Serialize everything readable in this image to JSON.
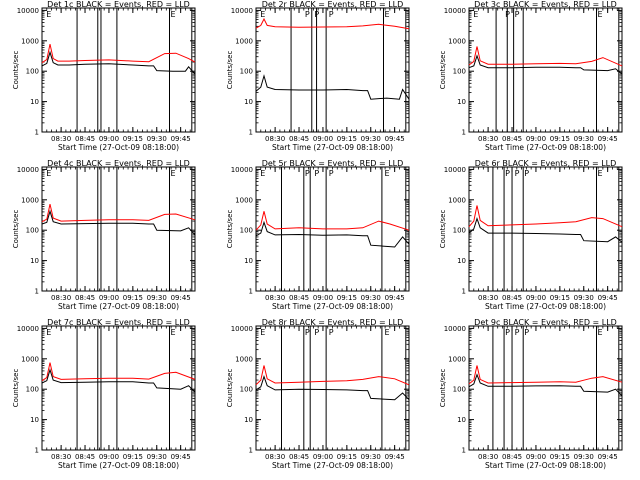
{
  "colors": {
    "events": "#000000",
    "lld": "#ff0000",
    "axis": "#000000"
  },
  "common": {
    "ylabel": "Counts/sec",
    "xlabel": "Start Time (27-Oct-09 08:18:00)",
    "ytick_labels": [
      "1",
      "10",
      "100",
      "1000",
      "10000"
    ],
    "xtick_labels": [
      "08:30",
      "08:45",
      "09:00",
      "09:15",
      "09:30",
      "09:45"
    ]
  },
  "chart_data": [
    {
      "type": "line",
      "title": "Det 1c BLACK = Events, RED = LLD",
      "y_scale": "log",
      "ylim": [
        1,
        12000
      ],
      "xlim": [
        "08:18",
        "09:54"
      ],
      "marker_letters": [
        "E",
        "E"
      ],
      "series": [
        {
          "color": "#ff0000",
          "x": [
            "08:18",
            "08:21",
            "08:23",
            "08:25",
            "08:28",
            "08:35",
            "08:45",
            "09:00",
            "09:15",
            "09:25",
            "09:35",
            "09:42",
            "09:50",
            "09:54"
          ],
          "values": [
            190,
            240,
            780,
            260,
            215,
            215,
            225,
            235,
            215,
            205,
            380,
            390,
            260,
            200
          ]
        },
        {
          "color": "#000000",
          "x": [
            "08:18",
            "08:21",
            "08:23",
            "08:25",
            "08:28",
            "08:35",
            "08:45",
            "09:00",
            "09:15",
            "09:25",
            "09:28",
            "09:30",
            "09:40",
            "09:48",
            "09:50",
            "09:54"
          ],
          "values": [
            150,
            180,
            420,
            190,
            160,
            160,
            170,
            175,
            160,
            150,
            150,
            105,
            100,
            100,
            140,
            80
          ]
        }
      ]
    },
    {
      "type": "line",
      "title": "Det 2r BLACK = Events, RED = LLD",
      "y_scale": "log",
      "ylim": [
        1,
        12000
      ],
      "xlim": [
        "08:18",
        "09:54"
      ],
      "marker_letters": [
        "E",
        "P",
        "P",
        "P",
        "E"
      ],
      "series": [
        {
          "color": "#ff0000",
          "x": [
            "08:18",
            "08:21",
            "08:23",
            "08:25",
            "08:30",
            "08:45",
            "09:00",
            "09:15",
            "09:25",
            "09:35",
            "09:45",
            "09:54"
          ],
          "values": [
            2600,
            3200,
            5200,
            3200,
            2900,
            2800,
            2850,
            2900,
            3100,
            3500,
            3000,
            2500
          ]
        },
        {
          "color": "#000000",
          "x": [
            "08:18",
            "08:21",
            "08:23",
            "08:25",
            "08:30",
            "08:45",
            "09:00",
            "09:15",
            "09:25",
            "09:28",
            "09:30",
            "09:40",
            "09:48",
            "09:50",
            "09:54"
          ],
          "values": [
            22,
            30,
            70,
            30,
            25,
            24,
            24,
            25,
            23,
            23,
            12,
            13,
            12,
            25,
            12
          ]
        }
      ]
    },
    {
      "type": "line",
      "title": "Det 3c BLACK = Events, RED = LLD",
      "y_scale": "log",
      "ylim": [
        1,
        12000
      ],
      "xlim": [
        "08:18",
        "09:54"
      ],
      "marker_letters": [
        "E",
        "P",
        "P",
        "E"
      ],
      "series": [
        {
          "color": "#ff0000",
          "x": [
            "08:18",
            "08:21",
            "08:23",
            "08:25",
            "08:30",
            "08:45",
            "09:00",
            "09:15",
            "09:25",
            "09:35",
            "09:42",
            "09:54"
          ],
          "values": [
            160,
            210,
            650,
            220,
            170,
            170,
            175,
            180,
            175,
            210,
            280,
            150
          ]
        },
        {
          "color": "#000000",
          "x": [
            "08:18",
            "08:21",
            "08:23",
            "08:25",
            "08:30",
            "08:45",
            "09:00",
            "09:15",
            "09:25",
            "09:28",
            "09:30",
            "09:45",
            "09:50",
            "09:54"
          ],
          "values": [
            130,
            150,
            320,
            160,
            130,
            130,
            135,
            135,
            130,
            130,
            110,
            105,
            120,
            80
          ]
        }
      ]
    },
    {
      "type": "line",
      "title": "Det 4c BLACK = Events, RED = LLD",
      "y_scale": "log",
      "ylim": [
        1,
        12000
      ],
      "xlim": [
        "08:18",
        "09:54"
      ],
      "marker_letters": [
        "E",
        "E"
      ],
      "series": [
        {
          "color": "#ff0000",
          "x": [
            "08:18",
            "08:21",
            "08:23",
            "08:25",
            "08:30",
            "08:45",
            "09:00",
            "09:15",
            "09:25",
            "09:35",
            "09:42",
            "09:54"
          ],
          "values": [
            190,
            230,
            720,
            250,
            200,
            210,
            220,
            220,
            210,
            330,
            340,
            220
          ]
        },
        {
          "color": "#000000",
          "x": [
            "08:18",
            "08:21",
            "08:23",
            "08:25",
            "08:30",
            "08:45",
            "09:00",
            "09:15",
            "09:25",
            "09:28",
            "09:30",
            "09:45",
            "09:50",
            "09:54"
          ],
          "values": [
            160,
            180,
            420,
            190,
            160,
            165,
            170,
            170,
            160,
            160,
            100,
            95,
            120,
            70
          ]
        }
      ]
    },
    {
      "type": "line",
      "title": "Det 5r BLACK = Events, RED = LLD",
      "y_scale": "log",
      "ylim": [
        1,
        12000
      ],
      "xlim": [
        "08:18",
        "09:54"
      ],
      "marker_letters": [
        "E",
        "P",
        "P",
        "P",
        "E"
      ],
      "series": [
        {
          "color": "#ff0000",
          "x": [
            "08:18",
            "08:21",
            "08:23",
            "08:25",
            "08:30",
            "08:45",
            "09:00",
            "09:15",
            "09:25",
            "09:35",
            "09:42",
            "09:54"
          ],
          "values": [
            100,
            150,
            420,
            160,
            110,
            120,
            110,
            110,
            120,
            200,
            160,
            100
          ]
        },
        {
          "color": "#000000",
          "x": [
            "08:18",
            "08:21",
            "08:23",
            "08:25",
            "08:30",
            "08:45",
            "09:00",
            "09:15",
            "09:25",
            "09:28",
            "09:30",
            "09:45",
            "09:50",
            "09:54"
          ],
          "values": [
            65,
            80,
            180,
            90,
            70,
            72,
            68,
            70,
            66,
            66,
            32,
            28,
            60,
            35
          ]
        }
      ]
    },
    {
      "type": "line",
      "title": "Det 6r BLACK = Events, RED = LLD",
      "y_scale": "log",
      "ylim": [
        1,
        12000
      ],
      "xlim": [
        "08:18",
        "09:54"
      ],
      "marker_letters": [
        "P",
        "P",
        "P",
        "E"
      ],
      "series": [
        {
          "color": "#ff0000",
          "x": [
            "08:18",
            "08:21",
            "08:23",
            "08:25",
            "08:30",
            "08:45",
            "09:00",
            "09:15",
            "09:25",
            "09:35",
            "09:42",
            "09:54"
          ],
          "values": [
            130,
            200,
            650,
            210,
            140,
            150,
            160,
            175,
            190,
            260,
            240,
            130
          ]
        },
        {
          "color": "#000000",
          "x": [
            "08:18",
            "08:21",
            "08:23",
            "08:25",
            "08:30",
            "08:45",
            "09:00",
            "09:15",
            "09:25",
            "09:28",
            "09:30",
            "09:45",
            "09:50",
            "09:54"
          ],
          "values": [
            80,
            110,
            240,
            120,
            80,
            80,
            78,
            75,
            72,
            72,
            45,
            42,
            60,
            40
          ]
        }
      ]
    },
    {
      "type": "line",
      "title": "Det 7c BLACK = Events, RED = LLD",
      "y_scale": "log",
      "ylim": [
        1,
        12000
      ],
      "xlim": [
        "08:18",
        "09:54"
      ],
      "marker_letters": [
        "E",
        "E"
      ],
      "series": [
        {
          "color": "#ff0000",
          "x": [
            "08:18",
            "08:21",
            "08:23",
            "08:25",
            "08:30",
            "08:45",
            "09:00",
            "09:15",
            "09:25",
            "09:35",
            "09:42",
            "09:54"
          ],
          "values": [
            190,
            240,
            750,
            260,
            210,
            220,
            230,
            230,
            215,
            330,
            360,
            210
          ]
        },
        {
          "color": "#000000",
          "x": [
            "08:18",
            "08:21",
            "08:23",
            "08:25",
            "08:30",
            "08:45",
            "09:00",
            "09:15",
            "09:25",
            "09:28",
            "09:30",
            "09:45",
            "09:50",
            "09:54"
          ],
          "values": [
            160,
            190,
            430,
            200,
            165,
            170,
            175,
            175,
            160,
            160,
            110,
            100,
            130,
            80
          ]
        }
      ]
    },
    {
      "type": "line",
      "title": "Det 8r BLACK = Events, RED = LLD",
      "y_scale": "log",
      "ylim": [
        1,
        12000
      ],
      "xlim": [
        "08:18",
        "09:54"
      ],
      "marker_letters": [
        "E",
        "P",
        "P",
        "P",
        "E"
      ],
      "series": [
        {
          "color": "#ff0000",
          "x": [
            "08:18",
            "08:21",
            "08:23",
            "08:25",
            "08:30",
            "08:45",
            "09:00",
            "09:15",
            "09:25",
            "09:35",
            "09:45",
            "09:54"
          ],
          "values": [
            140,
            200,
            600,
            220,
            160,
            170,
            180,
            190,
            210,
            260,
            220,
            140
          ]
        },
        {
          "color": "#000000",
          "x": [
            "08:18",
            "08:21",
            "08:23",
            "08:25",
            "08:30",
            "08:45",
            "09:00",
            "09:15",
            "09:25",
            "09:28",
            "09:30",
            "09:45",
            "09:50",
            "09:54"
          ],
          "values": [
            95,
            120,
            260,
            130,
            95,
            100,
            98,
            95,
            90,
            90,
            50,
            45,
            75,
            45
          ]
        }
      ]
    },
    {
      "type": "line",
      "title": "Det 9c BLACK = Events, RED = LLD",
      "y_scale": "log",
      "ylim": [
        1,
        12000
      ],
      "xlim": [
        "08:18",
        "09:54"
      ],
      "marker_letters": [
        "P",
        "P",
        "P",
        "E"
      ],
      "series": [
        {
          "color": "#ff0000",
          "x": [
            "08:18",
            "08:21",
            "08:23",
            "08:25",
            "08:30",
            "08:45",
            "09:00",
            "09:15",
            "09:25",
            "09:35",
            "09:42",
            "09:54"
          ],
          "values": [
            150,
            200,
            600,
            210,
            160,
            165,
            170,
            175,
            170,
            230,
            260,
            170
          ]
        },
        {
          "color": "#000000",
          "x": [
            "08:18",
            "08:21",
            "08:23",
            "08:25",
            "08:30",
            "08:45",
            "09:00",
            "09:15",
            "09:25",
            "09:28",
            "09:30",
            "09:45",
            "09:50",
            "09:54"
          ],
          "values": [
            120,
            150,
            300,
            160,
            125,
            125,
            128,
            130,
            125,
            125,
            85,
            80,
            100,
            60
          ]
        }
      ]
    }
  ]
}
